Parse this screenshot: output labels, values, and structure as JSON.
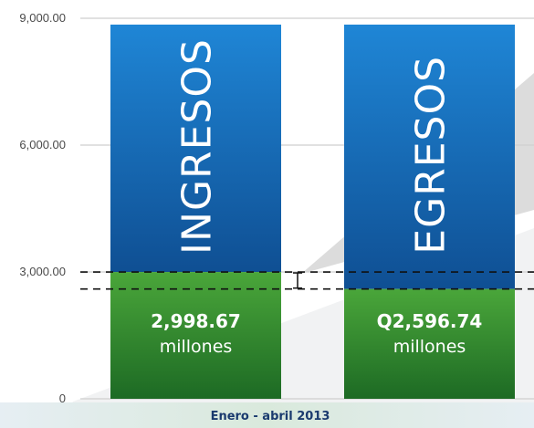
{
  "chart_data": {
    "type": "bar",
    "stacked": true,
    "categories": [
      "INGRESOS",
      "EGRESOS"
    ],
    "stack_total": 8850,
    "series": [
      {
        "values": [
          2998.67,
          2596.74
        ],
        "value_labels": [
          "2,998.67",
          "Q2,596.74"
        ],
        "unit_label": "millones",
        "color": "#2e8b2a"
      },
      {
        "values": [
          5851.33,
          6253.26
        ],
        "color": "#1565b0"
      }
    ],
    "y_ticks": [
      {
        "value": 0,
        "label": "0"
      },
      {
        "value": 3000,
        "label": "3,000.00"
      },
      {
        "value": 6000,
        "label": "6,000.00"
      },
      {
        "value": 9000,
        "label": "9,000.00"
      }
    ],
    "ylim": [
      0,
      9000
    ],
    "grid": true,
    "reference_lines": [
      2998.67,
      2596.74
    ],
    "period_label": "Enero - abril 2013",
    "title": "",
    "xlabel": "",
    "ylabel": ""
  }
}
